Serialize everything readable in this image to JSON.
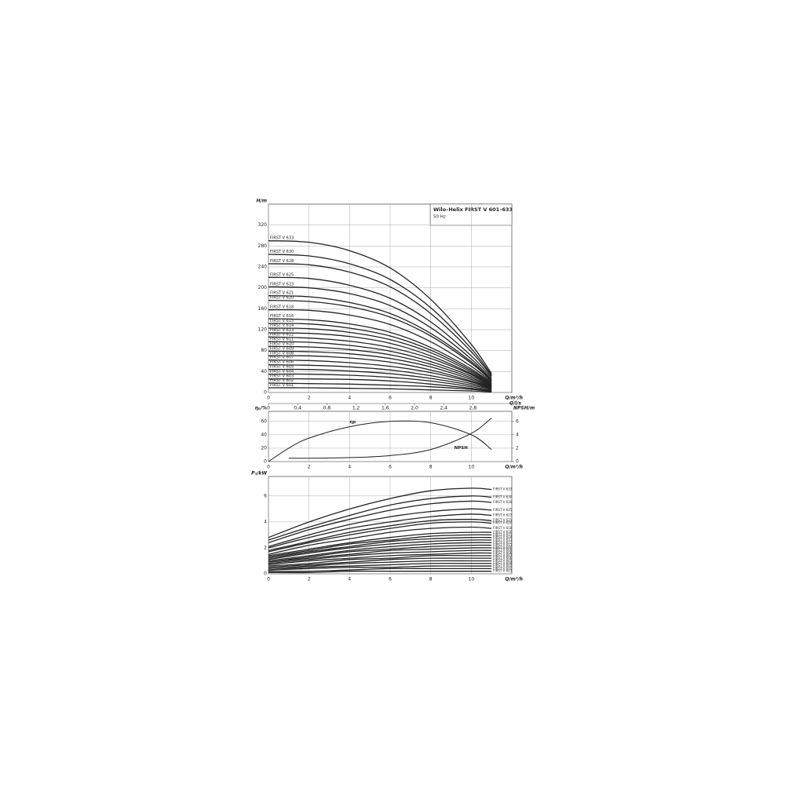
{
  "chart_data": [
    {
      "type": "line",
      "title": "Wilo–Helix FIRST V 601–633",
      "subtitle": "50 Hz",
      "ylabel": "H/m",
      "xlabel": "Q/m³/h",
      "x2label": "Q/l/s",
      "color": "#222",
      "grid": true,
      "xlim": [
        0,
        12
      ],
      "xticks": [
        0,
        2,
        4,
        6,
        8,
        10
      ],
      "ylim": [
        0,
        360
      ],
      "yticks": [
        0,
        40,
        80,
        120,
        160,
        200,
        240,
        280,
        320
      ],
      "x2lim": [
        0,
        3.333
      ],
      "x2ticks": [
        0,
        {
          "value": 0.4,
          "label": "0,4"
        },
        {
          "value": 0.8,
          "label": "0,8"
        },
        {
          "value": 1.2,
          "label": "1,2"
        },
        {
          "value": 1.6,
          "label": "1,6"
        },
        {
          "value": 2.0,
          "label": "2,0"
        },
        {
          "value": 2.4,
          "label": "2,4"
        },
        {
          "value": 2.8,
          "label": "2,8"
        }
      ],
      "x": [
        0,
        2,
        4,
        6,
        8,
        10,
        11
      ],
      "series": [
        {
          "name": "FIRST V 633",
          "values": [
            290,
            287,
            271,
            238,
            178,
            92,
            36
          ]
        },
        {
          "name": "FIRST V 630",
          "values": [
            264,
            261,
            246,
            216,
            162,
            84,
            33
          ]
        },
        {
          "name": "FIRST V 628",
          "values": [
            246,
            244,
            230,
            202,
            151,
            78,
            31
          ]
        },
        {
          "name": "FIRST V 625",
          "values": [
            220,
            218,
            205,
            180,
            135,
            70,
            28
          ]
        },
        {
          "name": "FIRST V 623",
          "values": [
            202,
            200,
            189,
            166,
            124,
            64,
            25
          ]
        },
        {
          "name": "FIRST V 621",
          "values": [
            185,
            183,
            172,
            151,
            113,
            59,
            23
          ]
        },
        {
          "name": "FIRST V 620",
          "values": [
            176,
            174,
            164,
            144,
            108,
            56,
            22
          ]
        },
        {
          "name": "FIRST V 618",
          "values": [
            158,
            157,
            148,
            130,
            97,
            50,
            20
          ]
        },
        {
          "name": "FIRST V 616",
          "values": [
            141,
            139,
            131,
            115,
            86,
            45,
            18
          ]
        },
        {
          "name": "FIRST V 615",
          "values": [
            132,
            131,
            123,
            108,
            81,
            42,
            17
          ]
        },
        {
          "name": "FIRST V 614",
          "values": [
            123,
            122,
            115,
            101,
            76,
            39,
            15
          ]
        },
        {
          "name": "FIRST V 613",
          "values": [
            114,
            113,
            107,
            94,
            70,
            36,
            14
          ]
        },
        {
          "name": "FIRST V 612",
          "values": [
            106,
            104,
            98,
            86,
            65,
            34,
            13
          ]
        },
        {
          "name": "FIRST V 611",
          "values": [
            97,
            96,
            90,
            79,
            59,
            31,
            12
          ]
        },
        {
          "name": "FIRST V 610",
          "values": [
            88,
            87,
            82,
            72,
            54,
            28,
            11
          ]
        },
        {
          "name": "FIRST V 609",
          "values": [
            79,
            78,
            74,
            65,
            49,
            25,
            10
          ]
        },
        {
          "name": "FIRST V 608",
          "values": [
            70,
            70,
            66,
            58,
            43,
            22,
            9
          ]
        },
        {
          "name": "FIRST V 607",
          "values": [
            62,
            61,
            57,
            50,
            38,
            20,
            8
          ]
        },
        {
          "name": "FIRST V 606",
          "values": [
            53,
            52,
            49,
            43,
            32,
            17,
            7
          ]
        },
        {
          "name": "FIRST V 605",
          "values": [
            44,
            44,
            41,
            36,
            27,
            14,
            6
          ]
        },
        {
          "name": "FIRST V 604",
          "values": [
            35,
            35,
            33,
            29,
            22,
            11,
            4
          ]
        },
        {
          "name": "FIRST V 603",
          "values": [
            26,
            26,
            25,
            22,
            16,
            8,
            3
          ]
        },
        {
          "name": "FIRST V 602",
          "values": [
            18,
            17,
            16,
            14,
            11,
            6,
            2
          ]
        },
        {
          "name": "FIRST V 601",
          "values": [
            9,
            9,
            8,
            7,
            5,
            3,
            1
          ]
        }
      ]
    },
    {
      "type": "line",
      "ylabel": "ηₚ/%",
      "y2label": "NPSH/m",
      "xlabel": "Q/m³/h",
      "color": "#222",
      "grid": true,
      "xlim": [
        0,
        12
      ],
      "xticks": [
        0,
        2,
        4,
        6,
        8,
        10
      ],
      "ylim": [
        0,
        75
      ],
      "yticks": [
        0,
        20,
        40,
        60
      ],
      "y2lim": [
        0,
        7.5
      ],
      "y2ticks": [
        0,
        2,
        4,
        6
      ],
      "series": [
        {
          "name": "ηp",
          "x": [
            0,
            1,
            2,
            4,
            6,
            8,
            10,
            11
          ],
          "values": [
            0,
            20,
            35,
            52,
            60,
            58,
            40,
            18
          ]
        },
        {
          "name": "NPSH",
          "axis": "y2",
          "x": [
            1,
            2,
            4,
            6,
            8,
            10,
            11
          ],
          "values": [
            0.5,
            0.5,
            0.6,
            0.9,
            1.8,
            4.2,
            6.5
          ]
        }
      ]
    },
    {
      "type": "line",
      "ylabel": "P₂/kW",
      "xlabel": "Q/m³/h",
      "color": "#222",
      "grid": true,
      "xlim": [
        0,
        12
      ],
      "xticks": [
        0,
        2,
        4,
        6,
        8,
        10
      ],
      "ylim": [
        0,
        7.5
      ],
      "yticks": [
        0,
        2,
        4,
        6
      ],
      "x": [
        0,
        2,
        4,
        6,
        8,
        10,
        11
      ],
      "series": [
        {
          "name": "FIRST V 633",
          "values": [
            2.8,
            4.0,
            5.0,
            5.8,
            6.4,
            6.6,
            6.5
          ]
        },
        {
          "name": "FIRST V 630",
          "values": [
            2.6,
            3.6,
            4.5,
            5.3,
            5.8,
            6.0,
            5.9
          ]
        },
        {
          "name": "FIRST V 628",
          "values": [
            2.4,
            3.4,
            4.2,
            4.9,
            5.4,
            5.6,
            5.5
          ]
        },
        {
          "name": "FIRST V 625",
          "values": [
            2.1,
            3.0,
            3.8,
            4.4,
            4.8,
            5.0,
            4.9
          ]
        },
        {
          "name": "FIRST V 623",
          "values": [
            2.0,
            2.8,
            3.5,
            4.0,
            4.4,
            4.6,
            4.5
          ]
        },
        {
          "name": "FIRST V 621",
          "values": [
            1.8,
            2.5,
            3.2,
            3.7,
            4.1,
            4.2,
            4.1
          ]
        },
        {
          "name": "FIRST V 620",
          "values": [
            1.7,
            2.4,
            3.0,
            3.5,
            3.9,
            4.0,
            3.9
          ]
        },
        {
          "name": "FIRST V 618",
          "values": [
            1.5,
            2.2,
            2.7,
            3.2,
            3.5,
            3.6,
            3.5
          ]
        },
        {
          "name": "FIRST V 616",
          "values": [
            1.4,
            1.9,
            2.4,
            2.8,
            3.1,
            3.2,
            3.2
          ]
        },
        {
          "name": "FIRST V 615",
          "values": [
            1.3,
            1.8,
            2.3,
            2.6,
            2.9,
            3.0,
            3.0
          ]
        },
        {
          "name": "FIRST V 614",
          "values": [
            1.2,
            1.7,
            2.1,
            2.5,
            2.7,
            2.8,
            2.8
          ]
        },
        {
          "name": "FIRST V 613",
          "values": [
            1.1,
            1.6,
            2.0,
            2.3,
            2.5,
            2.6,
            2.6
          ]
        },
        {
          "name": "FIRST V 612",
          "values": [
            1.0,
            1.4,
            1.8,
            2.1,
            2.3,
            2.4,
            2.4
          ]
        },
        {
          "name": "FIRST V 611",
          "values": [
            0.9,
            1.3,
            1.7,
            1.9,
            2.1,
            2.2,
            2.2
          ]
        },
        {
          "name": "FIRST V 610",
          "values": [
            0.9,
            1.2,
            1.5,
            1.8,
            1.9,
            2.0,
            2.0
          ]
        },
        {
          "name": "FIRST V 609",
          "values": [
            0.8,
            1.1,
            1.4,
            1.6,
            1.7,
            1.8,
            1.8
          ]
        },
        {
          "name": "FIRST V 608",
          "values": [
            0.7,
            1.0,
            1.2,
            1.4,
            1.5,
            1.6,
            1.6
          ]
        },
        {
          "name": "FIRST V 607",
          "values": [
            0.6,
            0.8,
            1.1,
            1.2,
            1.4,
            1.4,
            1.4
          ]
        },
        {
          "name": "FIRST V 606",
          "values": [
            0.5,
            0.7,
            0.9,
            1.1,
            1.2,
            1.2,
            1.2
          ]
        },
        {
          "name": "FIRST V 605",
          "values": [
            0.4,
            0.6,
            0.8,
            0.9,
            1.0,
            1.0,
            1.0
          ]
        },
        {
          "name": "FIRST V 604",
          "values": [
            0.3,
            0.5,
            0.6,
            0.7,
            0.8,
            0.8,
            0.8
          ]
        },
        {
          "name": "FIRST V 603",
          "values": [
            0.3,
            0.4,
            0.5,
            0.5,
            0.6,
            0.6,
            0.6
          ]
        },
        {
          "name": "FIRST V 602",
          "values": [
            0.2,
            0.2,
            0.3,
            0.4,
            0.4,
            0.4,
            0.4
          ]
        },
        {
          "name": "FIRST V 601",
          "values": [
            0.1,
            0.1,
            0.2,
            0.2,
            0.2,
            0.2,
            0.2
          ]
        }
      ]
    }
  ]
}
